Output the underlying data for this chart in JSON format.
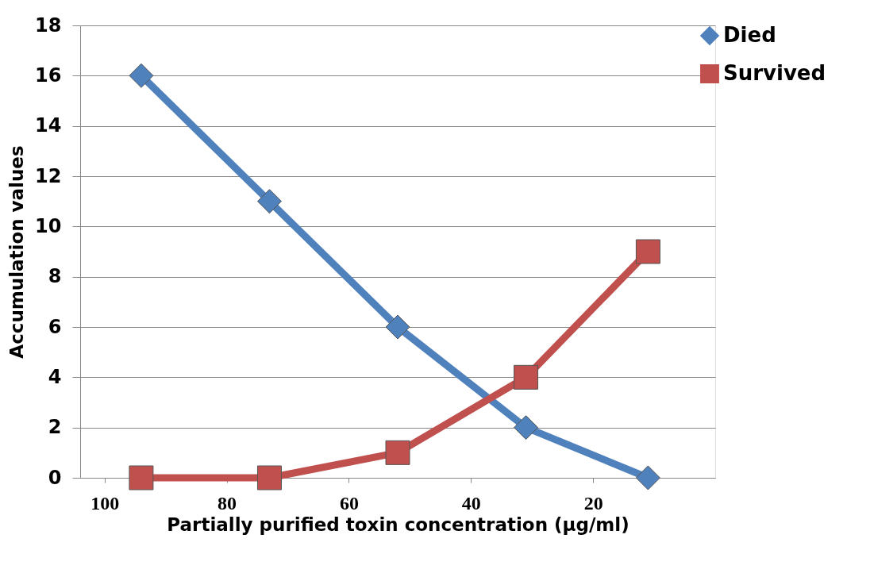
{
  "chart_data": {
    "type": "line",
    "xlabel": "Partially purified toxin concentration (µg/ml)",
    "ylabel": "Accumulation values",
    "x": [
      94,
      73,
      52,
      31,
      11
    ],
    "series": [
      {
        "name": "Died",
        "color": "#4f81bd",
        "marker": "diamond",
        "values": [
          16,
          11,
          6,
          2,
          0
        ]
      },
      {
        "name": "Survived",
        "color": "#c0504d",
        "marker": "square",
        "values": [
          0,
          0,
          1,
          4,
          9
        ]
      }
    ],
    "xlim": [
      104,
      0
    ],
    "xticks": [
      100,
      80,
      60,
      40,
      20
    ],
    "ylim": [
      0,
      18
    ],
    "yticks": [
      0,
      2,
      4,
      6,
      8,
      10,
      12,
      14,
      16,
      18
    ],
    "grid": "y",
    "legend": "right",
    "line_style": "solid"
  }
}
